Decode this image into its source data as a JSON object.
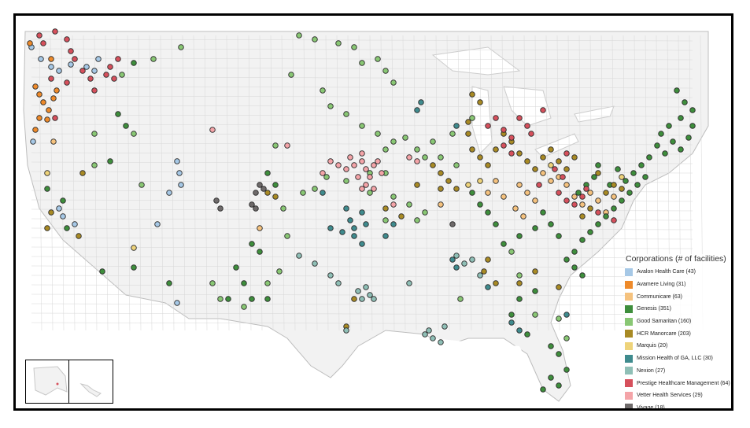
{
  "legend": {
    "title": "Corporations (# of facilities)",
    "items": [
      {
        "label": "Avalon Health Care (43)",
        "color": "#a6c8e6"
      },
      {
        "label": "Avamere Living (31)",
        "color": "#ee8a2a"
      },
      {
        "label": "Communicare (63)",
        "color": "#f5c27e"
      },
      {
        "label": "Genesis (351)",
        "color": "#3e8e3c"
      },
      {
        "label": "Good Samaritan (160)",
        "color": "#89c774"
      },
      {
        "label": "HCR Manorcare (203)",
        "color": "#a88a24"
      },
      {
        "label": "Marquis (20)",
        "color": "#eed37a"
      },
      {
        "label": "Mission Health of GA, LLC (30)",
        "color": "#3f8b8e"
      },
      {
        "label": "Nexion (27)",
        "color": "#8fbfb6"
      },
      {
        "label": "Prestige Healthcare Management (64)",
        "color": "#d6505c"
      },
      {
        "label": "Vetter Health Services (29)",
        "color": "#f4a4a8"
      },
      {
        "label": "Vivage (18)",
        "color": "#6e6a6a"
      }
    ]
  },
  "map_style": {
    "land": "#f2f2f2",
    "borders": "#c8c8c8",
    "water": "#ffffff"
  }
}
